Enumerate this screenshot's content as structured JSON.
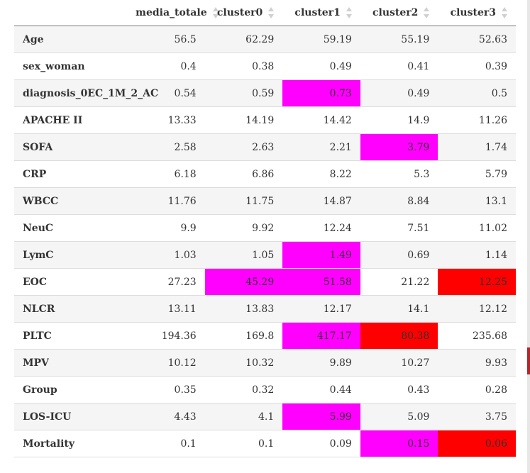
{
  "colors": {
    "highlight_magenta": "#ff00ff",
    "highlight_red": "#ff0000",
    "row_stripe": "#f5f5f5"
  },
  "table": {
    "columns": [
      "media_totale",
      "cluster0",
      "cluster1",
      "cluster2",
      "cluster3"
    ],
    "rows": [
      {
        "label": "Age",
        "values": [
          "56.5",
          "62.29",
          "59.19",
          "55.19",
          "52.63"
        ],
        "highlight": [
          null,
          null,
          null,
          null,
          null
        ]
      },
      {
        "label": "sex_woman",
        "values": [
          "0.4",
          "0.38",
          "0.49",
          "0.41",
          "0.39"
        ],
        "highlight": [
          null,
          null,
          null,
          null,
          null
        ]
      },
      {
        "label": "diagnosis_0EC_1M_2_AC",
        "values": [
          "0.54",
          "0.59",
          "0.73",
          "0.49",
          "0.5"
        ],
        "highlight": [
          null,
          null,
          "magenta",
          null,
          null
        ]
      },
      {
        "label": "APACHE II",
        "values": [
          "13.33",
          "14.19",
          "14.42",
          "14.9",
          "11.26"
        ],
        "highlight": [
          null,
          null,
          null,
          null,
          null
        ]
      },
      {
        "label": "SOFA",
        "values": [
          "2.58",
          "2.63",
          "2.21",
          "3.79",
          "1.74"
        ],
        "highlight": [
          null,
          null,
          null,
          "magenta",
          null
        ]
      },
      {
        "label": "CRP",
        "values": [
          "6.18",
          "6.86",
          "8.22",
          "5.3",
          "5.79"
        ],
        "highlight": [
          null,
          null,
          null,
          null,
          null
        ]
      },
      {
        "label": "WBCC",
        "values": [
          "11.76",
          "11.75",
          "14.87",
          "8.84",
          "13.1"
        ],
        "highlight": [
          null,
          null,
          null,
          null,
          null
        ]
      },
      {
        "label": "NeuC",
        "values": [
          "9.9",
          "9.92",
          "12.24",
          "7.51",
          "11.02"
        ],
        "highlight": [
          null,
          null,
          null,
          null,
          null
        ]
      },
      {
        "label": "LymC",
        "values": [
          "1.03",
          "1.05",
          "1.49",
          "0.69",
          "1.14"
        ],
        "highlight": [
          null,
          null,
          "magenta",
          null,
          null
        ]
      },
      {
        "label": "EOC",
        "values": [
          "27.23",
          "45.29",
          "51.58",
          "21.22",
          "12.25"
        ],
        "highlight": [
          null,
          "magenta",
          "magenta",
          null,
          "red"
        ]
      },
      {
        "label": "NLCR",
        "values": [
          "13.11",
          "13.83",
          "12.17",
          "14.1",
          "12.12"
        ],
        "highlight": [
          null,
          null,
          null,
          null,
          null
        ]
      },
      {
        "label": "PLTC",
        "values": [
          "194.36",
          "169.8",
          "417.17",
          "80.38",
          "235.68"
        ],
        "highlight": [
          null,
          null,
          "magenta",
          "red",
          null
        ]
      },
      {
        "label": "MPV",
        "values": [
          "10.12",
          "10.32",
          "9.89",
          "10.27",
          "9.93"
        ],
        "highlight": [
          null,
          null,
          null,
          null,
          null
        ]
      },
      {
        "label": "Group",
        "values": [
          "0.35",
          "0.32",
          "0.44",
          "0.43",
          "0.28"
        ],
        "highlight": [
          null,
          null,
          null,
          null,
          null
        ]
      },
      {
        "label": "LOS-ICU",
        "values": [
          "4.43",
          "4.1",
          "5.99",
          "5.09",
          "3.75"
        ],
        "highlight": [
          null,
          null,
          "magenta",
          null,
          null
        ]
      },
      {
        "label": "Mortality",
        "values": [
          "0.1",
          "0.1",
          "0.09",
          "0.15",
          "0.06"
        ],
        "highlight": [
          null,
          null,
          null,
          "magenta",
          "red"
        ]
      }
    ]
  }
}
